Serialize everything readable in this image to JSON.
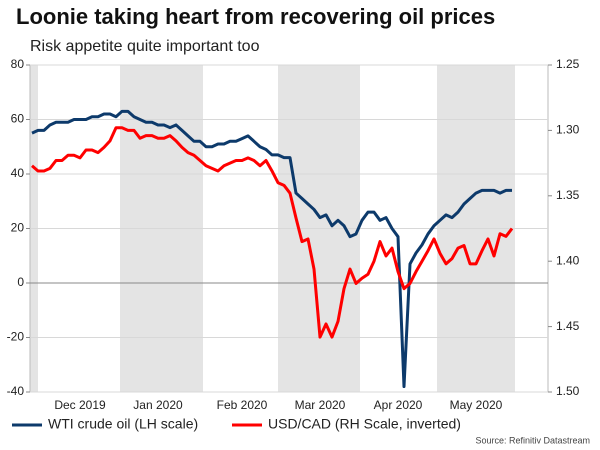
{
  "chart_data": {
    "type": "line",
    "title": "Loonie taking heart from recovering oil prices",
    "subtitle": "Risk appetite quite important too",
    "source": "Source: Refinitiv Datastream",
    "categories": [
      null,
      null,
      null,
      null,
      null,
      null,
      null,
      null,
      "Dec 2019",
      null,
      null,
      null,
      null,
      null,
      null,
      null,
      null,
      null,
      null,
      null,
      null,
      "Jan 2020",
      null,
      null,
      null,
      null,
      null,
      null,
      null,
      null,
      null,
      null,
      null,
      null,
      null,
      "Feb 2020",
      null,
      null,
      null,
      null,
      null,
      null,
      null,
      null,
      null,
      null,
      null,
      null,
      "Mar 2020",
      null,
      null,
      null,
      null,
      null,
      null,
      null,
      null,
      null,
      null,
      null,
      null,
      "Apr 2020",
      null,
      null,
      null,
      null,
      null,
      null,
      null,
      null,
      null,
      null,
      null,
      null,
      "May 2020",
      null,
      null,
      null,
      null,
      null,
      null
    ],
    "series": [
      {
        "name": "WTI crude oil (LH scale)",
        "color": "#0d3a6b",
        "axis": "y",
        "values": [
          55,
          56,
          56,
          58,
          59,
          59,
          59,
          60,
          60,
          60,
          61,
          61,
          62,
          62,
          61,
          63,
          63,
          61,
          60,
          59,
          59,
          58,
          58,
          57,
          58,
          56,
          54,
          52,
          52,
          50,
          50,
          51,
          51,
          52,
          52,
          53,
          54,
          52,
          50,
          49,
          47,
          47,
          46,
          46,
          33,
          31,
          29,
          27,
          24,
          25,
          21,
          23,
          21,
          17,
          18,
          23,
          26,
          26,
          23,
          24,
          20,
          17,
          -38,
          7,
          11,
          14,
          18,
          21,
          23,
          25,
          24,
          26,
          29,
          31,
          33,
          34,
          34,
          34,
          33,
          34,
          34
        ]
      },
      {
        "name": "USD/CAD (RH Scale, inverted)",
        "color": "#ff0000",
        "axis": "y2",
        "values": [
          1.327,
          1.331,
          1.331,
          1.329,
          1.323,
          1.323,
          1.319,
          1.319,
          1.321,
          1.315,
          1.315,
          1.317,
          1.313,
          1.308,
          1.298,
          1.298,
          1.3,
          1.3,
          1.306,
          1.304,
          1.304,
          1.306,
          1.306,
          1.304,
          1.308,
          1.313,
          1.317,
          1.319,
          1.323,
          1.327,
          1.329,
          1.331,
          1.327,
          1.325,
          1.323,
          1.323,
          1.321,
          1.323,
          1.327,
          1.323,
          1.331,
          1.34,
          1.342,
          1.348,
          1.367,
          1.385,
          1.383,
          1.406,
          1.458,
          1.448,
          1.458,
          1.446,
          1.421,
          1.406,
          1.417,
          1.413,
          1.41,
          1.4,
          1.385,
          1.396,
          1.39,
          1.408,
          1.421,
          1.417,
          1.408,
          1.4,
          1.392,
          1.383,
          1.394,
          1.402,
          1.398,
          1.39,
          1.388,
          1.402,
          1.402,
          1.392,
          1.383,
          1.396,
          1.379,
          1.381,
          1.375
        ]
      }
    ],
    "ylim": [
      -40,
      80
    ],
    "yticks": [
      -40,
      -20,
      0,
      20,
      40,
      60,
      80
    ],
    "y2lim": [
      1.25,
      1.5
    ],
    "y2_inverted": true,
    "y2ticks": [
      1.25,
      {
        "value": 1.3,
        "label": "1.30"
      },
      1.35,
      {
        "value": 1.4,
        "label": "1.40"
      },
      1.45,
      {
        "value": 1.5,
        "label": "1.50"
      }
    ],
    "grid": true,
    "legend": "bottom"
  }
}
